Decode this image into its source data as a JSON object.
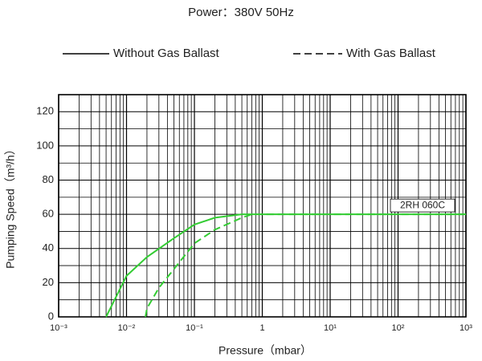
{
  "chart_data": {
    "type": "line",
    "title": "Power：380V 50Hz",
    "x_label": "Pressure（mbar）",
    "y_label": "Pumping Speed（m³/h）",
    "annotation": "2RH 060C",
    "x_scale": "log",
    "xlim": [
      0.001,
      1000
    ],
    "xticks": [
      {
        "value": 0.001,
        "label": "10⁻³"
      },
      {
        "value": 0.01,
        "label": "10⁻²"
      },
      {
        "value": 0.1,
        "label": "10⁻¹"
      },
      1,
      {
        "value": 10,
        "label": "10¹"
      },
      {
        "value": 100,
        "label": "10²"
      },
      {
        "value": 1000,
        "label": "10³"
      }
    ],
    "ylim": [
      0,
      130
    ],
    "yticks": [
      0,
      20,
      40,
      60,
      80,
      100,
      120
    ],
    "grid": true,
    "legend": "top",
    "series": [
      {
        "name": "Without Gas Ballast",
        "color": "#33cc33",
        "dash": "solid",
        "x": [
          0.005,
          0.01,
          0.02,
          0.05,
          0.1,
          0.2,
          0.5,
          1,
          1000
        ],
        "values": [
          0,
          24,
          35,
          46,
          54,
          58,
          60,
          60,
          60
        ]
      },
      {
        "name": "With Gas Ballast",
        "color": "#33cc33",
        "dash": "dashed",
        "x": [
          0.019,
          0.02,
          0.03,
          0.05,
          0.1,
          0.2,
          0.5,
          0.7,
          1000
        ],
        "values": [
          0,
          5,
          17,
          28,
          43,
          51,
          58,
          60,
          60
        ]
      }
    ]
  }
}
